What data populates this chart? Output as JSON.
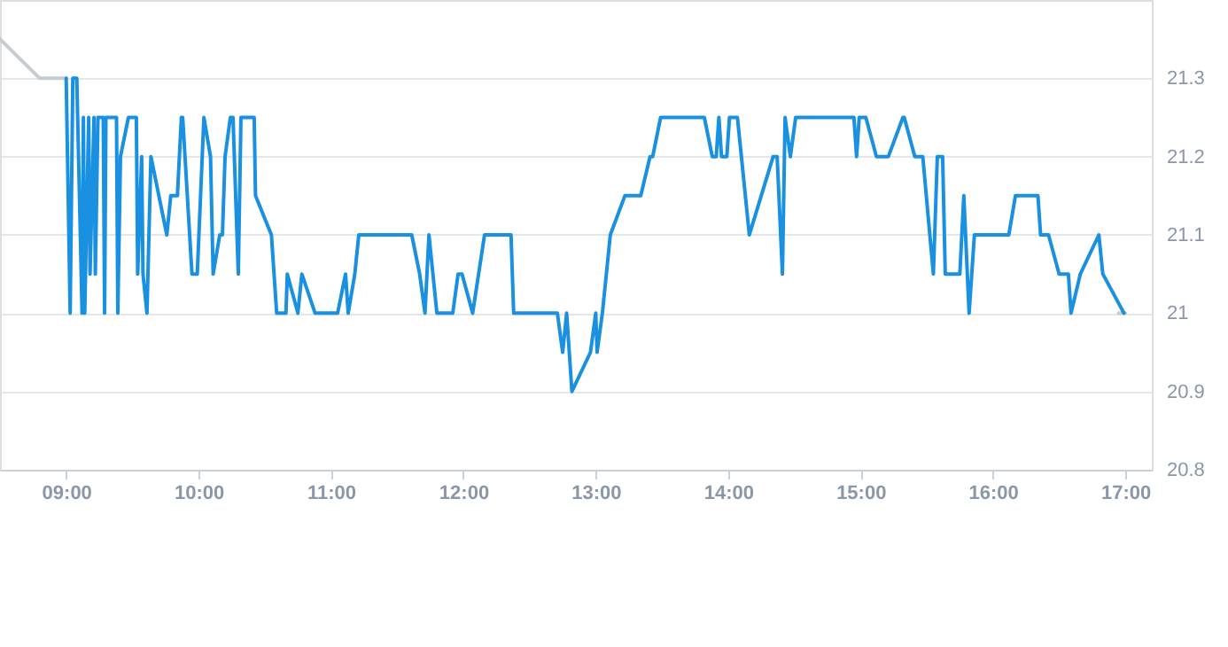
{
  "chart_data": {
    "type": "line",
    "xlim": [
      8.5,
      17.2
    ],
    "ylim": [
      20.8,
      21.4
    ],
    "xticks": [
      {
        "value": 9,
        "label": "09:00"
      },
      {
        "value": 10,
        "label": "10:00"
      },
      {
        "value": 11,
        "label": "11:00"
      },
      {
        "value": 12,
        "label": "12:00"
      },
      {
        "value": 13,
        "label": "13:00"
      },
      {
        "value": 14,
        "label": "14:00"
      },
      {
        "value": 15,
        "label": "15:00"
      },
      {
        "value": 16,
        "label": "16:00"
      },
      {
        "value": 17,
        "label": "17:00"
      }
    ],
    "yticks": [
      20.8,
      20.9,
      {
        "value": 21,
        "label": "21"
      },
      21.1,
      21.2,
      21.3
    ],
    "grid": "y",
    "legend": false,
    "marker": "none",
    "line_style": "solid",
    "series": [
      {
        "color": "#c4ccd4",
        "x": [
          8.5,
          8.8,
          9.0
        ],
        "values": [
          21.35,
          21.3,
          21.3
        ]
      },
      {
        "color": "#c4ccd4",
        "x": [
          16.95,
          17.0
        ],
        "values": [
          21.0,
          21.0
        ]
      },
      {
        "color": "#1a90e0",
        "x": [
          9.0,
          9.03,
          9.05,
          9.08,
          9.12,
          9.13,
          9.14,
          9.17,
          9.18,
          9.21,
          9.22,
          9.24,
          9.28,
          9.29,
          9.3,
          9.38,
          9.39,
          9.41,
          9.47,
          9.53,
          9.54,
          9.57,
          9.58,
          9.61,
          9.64,
          9.76,
          9.79,
          9.84,
          9.87,
          9.88,
          9.95,
          9.99,
          10.04,
          10.09,
          10.11,
          10.16,
          10.18,
          10.2,
          10.24,
          10.26,
          10.3,
          10.32,
          10.42,
          10.43,
          10.55,
          10.59,
          10.66,
          10.67,
          10.75,
          10.78,
          10.88,
          11.05,
          11.11,
          11.13,
          11.18,
          11.21,
          11.61,
          11.67,
          11.71,
          11.74,
          11.8,
          11.92,
          11.96,
          11.99,
          12.07,
          12.16,
          12.36,
          12.38,
          12.71,
          12.75,
          12.78,
          12.82,
          12.96,
          13.0,
          13.01,
          13.05,
          13.11,
          13.22,
          13.34,
          13.41,
          13.43,
          13.49,
          13.82,
          13.88,
          13.91,
          13.93,
          13.95,
          13.99,
          14.01,
          14.07,
          14.16,
          14.34,
          14.37,
          14.41,
          14.43,
          14.47,
          14.51,
          14.95,
          14.97,
          14.99,
          15.04,
          15.12,
          15.21,
          15.32,
          15.33,
          15.41,
          15.47,
          15.55,
          15.58,
          15.62,
          15.64,
          15.75,
          15.78,
          15.82,
          15.86,
          16.12,
          16.17,
          16.34,
          16.36,
          16.42,
          16.5,
          16.57,
          16.59,
          16.66,
          16.8,
          16.83,
          16.99
        ],
        "values": [
          21.3,
          21.0,
          21.3,
          21.3,
          21.0,
          21.25,
          21.0,
          21.25,
          21.05,
          21.25,
          21.05,
          21.25,
          21.25,
          21.0,
          21.25,
          21.25,
          21.0,
          21.2,
          21.25,
          21.25,
          21.05,
          21.2,
          21.05,
          21.0,
          21.2,
          21.1,
          21.15,
          21.15,
          21.25,
          21.25,
          21.05,
          21.05,
          21.25,
          21.2,
          21.05,
          21.1,
          21.1,
          21.2,
          21.25,
          21.25,
          21.05,
          21.25,
          21.25,
          21.15,
          21.1,
          21.0,
          21.0,
          21.05,
          21.0,
          21.05,
          21.0,
          21.0,
          21.05,
          21.0,
          21.05,
          21.1,
          21.1,
          21.05,
          21.0,
          21.1,
          21.0,
          21.0,
          21.05,
          21.05,
          21.0,
          21.1,
          21.1,
          21.0,
          21.0,
          20.95,
          21.0,
          20.9,
          20.95,
          21.0,
          20.95,
          21.0,
          21.1,
          21.15,
          21.15,
          21.2,
          21.2,
          21.25,
          21.25,
          21.2,
          21.2,
          21.25,
          21.2,
          21.2,
          21.25,
          21.25,
          21.1,
          21.2,
          21.2,
          21.05,
          21.25,
          21.2,
          21.25,
          21.25,
          21.2,
          21.25,
          21.25,
          21.2,
          21.2,
          21.25,
          21.25,
          21.2,
          21.2,
          21.05,
          21.2,
          21.2,
          21.05,
          21.05,
          21.15,
          21.0,
          21.1,
          21.1,
          21.15,
          21.15,
          21.1,
          21.1,
          21.05,
          21.05,
          21.0,
          21.05,
          21.1,
          21.05,
          21.0
        ]
      }
    ]
  }
}
